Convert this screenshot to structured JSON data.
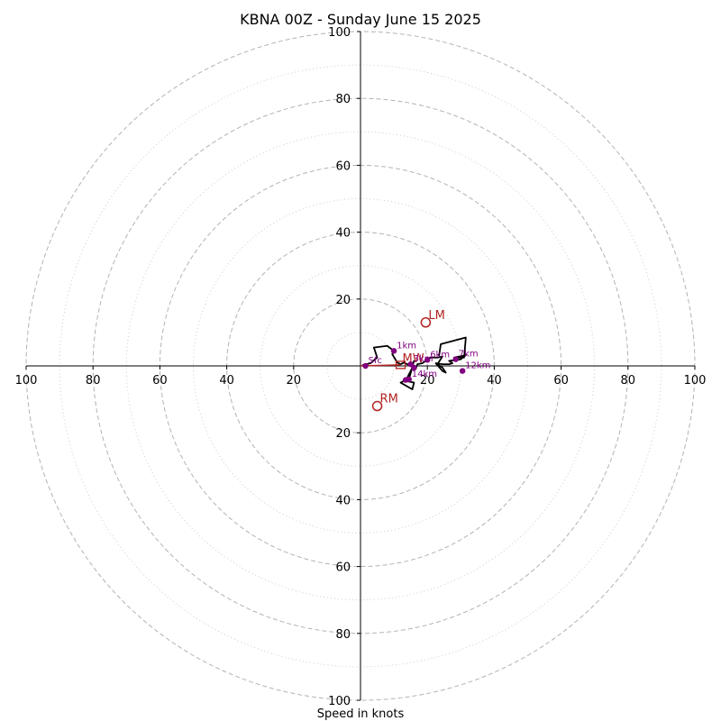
{
  "chart_data": {
    "type": "hodograph",
    "title": "KBNA 00Z - Sunday June 15 2025",
    "xlabel": "Speed in knots",
    "xlim": [
      -100,
      100
    ],
    "ylim": [
      -100,
      100
    ],
    "rings_major": [
      20,
      40,
      60,
      80,
      100
    ],
    "rings_minor": [
      10,
      30,
      50,
      70,
      90
    ],
    "x_tick_labels": [
      "100",
      "80",
      "60",
      "40",
      "20",
      "20",
      "40",
      "60",
      "80",
      "100"
    ],
    "x_tick_values": [
      -100,
      -80,
      -60,
      -40,
      -20,
      20,
      40,
      60,
      80,
      100
    ],
    "y_tick_labels": [
      "100",
      "80",
      "60",
      "40",
      "20",
      "20",
      "40",
      "60",
      "80",
      "100"
    ],
    "y_tick_values": [
      100,
      80,
      60,
      40,
      20,
      -20,
      -40,
      -60,
      -80,
      -100
    ],
    "grid": true,
    "colors": {
      "trace": "#000000",
      "height_markers": "#800080",
      "motion": "#b22222",
      "ring": "#b3b3b3",
      "axis": "#000000"
    },
    "trace": [
      [
        0.5,
        0.2
      ],
      [
        3,
        0.8
      ],
      [
        5,
        2.5
      ],
      [
        4,
        5.5
      ],
      [
        8,
        6
      ],
      [
        10,
        4.5
      ],
      [
        9.5,
        3.5
      ],
      [
        11,
        1
      ],
      [
        12,
        0.5
      ],
      [
        13,
        1
      ],
      [
        14,
        0.5
      ],
      [
        15.5,
        0
      ],
      [
        16,
        1.5
      ],
      [
        14.5,
        -4
      ],
      [
        14.5,
        -3
      ],
      [
        13.5,
        -4.5
      ],
      [
        16,
        -5
      ],
      [
        15.5,
        -7
      ],
      [
        12,
        -5
      ],
      [
        13,
        -4.5
      ],
      [
        14,
        -3.5
      ],
      [
        15.5,
        -0.5
      ],
      [
        16.5,
        -1
      ],
      [
        17,
        0.5
      ],
      [
        18.5,
        0.8
      ],
      [
        19.5,
        1.5
      ],
      [
        21,
        2.5
      ],
      [
        23,
        2.5
      ],
      [
        24.5,
        2.8
      ],
      [
        23,
        0.5
      ],
      [
        24.5,
        -0.5
      ],
      [
        25.5,
        -2
      ],
      [
        24.5,
        -1.5
      ],
      [
        22.5,
        0.8
      ],
      [
        24.5,
        0.5
      ],
      [
        26.5,
        0.5
      ],
      [
        27.5,
        0.8
      ],
      [
        26.5,
        1.5
      ],
      [
        30,
        2
      ],
      [
        31.5,
        3.2
      ],
      [
        28,
        2.5
      ],
      [
        31,
        2.5
      ],
      [
        31.5,
        8.5
      ],
      [
        24,
        6.5
      ],
      [
        23.5,
        3
      ]
    ],
    "height_markers": [
      {
        "label": "Sfc",
        "u": 1.5,
        "v": 0
      },
      {
        "label": "1km",
        "u": 10,
        "v": 4.5
      },
      {
        "label": "3km",
        "u": 15,
        "v": 0.5
      },
      {
        "label": "6km",
        "u": 20,
        "v": 1.8
      },
      {
        "label": "7km",
        "u": 28.5,
        "v": 2
      },
      {
        "label": "12km",
        "u": 30.5,
        "v": -1.5
      },
      {
        "label": "14km",
        "u": 14.5,
        "v": -4
      },
      {
        "label": "",
        "u": 13.5,
        "v": -4.2
      },
      {
        "label": "",
        "u": 16,
        "v": -0.5
      }
    ],
    "storm_motion": [
      {
        "label": "LM",
        "u": 19.5,
        "v": 13
      },
      {
        "label": "RM",
        "u": 5,
        "v": -12
      }
    ],
    "mean_wind": {
      "label": "MW",
      "u": 12,
      "v": 0.3
    }
  }
}
